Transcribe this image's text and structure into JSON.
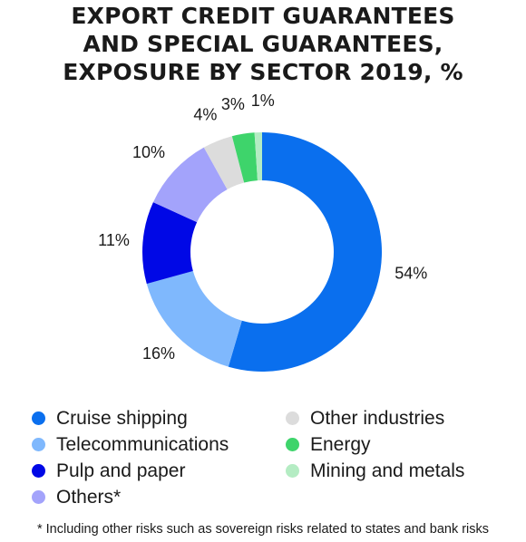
{
  "title_lines": [
    "EXPORT CREDIT GUARANTEES",
    "AND SPECIAL GUARANTEES,",
    "EXPOSURE BY SECTOR 2019, %"
  ],
  "chart_data": {
    "type": "pie",
    "title": "EXPORT CREDIT GUARANTEES AND SPECIAL GUARANTEES, EXPOSURE BY SECTOR 2019, %",
    "donut": true,
    "categories": [
      "Cruise shipping",
      "Telecommunications",
      "Pulp and paper",
      "Others*",
      "Other industries",
      "Energy",
      "Mining and metals"
    ],
    "values": [
      54,
      16,
      11,
      10,
      4,
      3,
      1
    ],
    "value_labels": [
      "54%",
      "16%",
      "11%",
      "10%",
      "4%",
      "3%",
      "1%"
    ],
    "colors": [
      "#0a6fee",
      "#7fb8fd",
      "#0008e6",
      "#a3a3fb",
      "#dcdcdc",
      "#3ed46b",
      "#b4ecc3"
    ],
    "legend_placement": "bottom"
  },
  "legend": {
    "column1": [
      {
        "label": "Cruise shipping",
        "color": "#0a6fee"
      },
      {
        "label": "Telecommunications",
        "color": "#7fb8fd"
      },
      {
        "label": "Pulp and paper",
        "color": "#0008e6"
      },
      {
        "label": "Others*",
        "color": "#a3a3fb"
      }
    ],
    "column2": [
      {
        "label": "Other industries",
        "color": "#dcdcdc"
      },
      {
        "label": "Energy",
        "color": "#3ed46b"
      },
      {
        "label": "Mining and metals",
        "color": "#b4ecc3"
      }
    ]
  },
  "footnote": "* Including other risks such as sovereign risks related to states and bank risks"
}
